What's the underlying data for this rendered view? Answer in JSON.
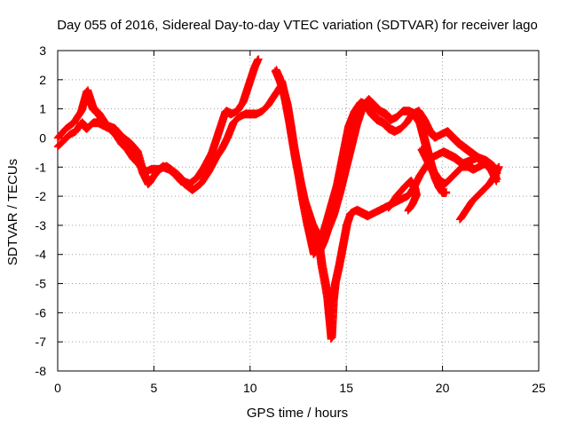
{
  "chart_data": {
    "type": "scatter",
    "title": "Day 055 of 2016, Sidereal Day-to-day VTEC variation (SDTVAR) for receiver lago",
    "xlabel": "GPS time / hours",
    "ylabel": "SDTVAR / TECUs",
    "xlim": [
      0,
      25
    ],
    "ylim": [
      -8,
      3
    ],
    "xticks": [
      "0",
      "5",
      "10",
      "15",
      "20",
      "25"
    ],
    "yticks": [
      "3",
      "2",
      "1",
      "0",
      "-1",
      "-2",
      "-3",
      "-4",
      "-5",
      "-6",
      "-7",
      "-8"
    ],
    "grid": true,
    "marker": "+",
    "marker_color": "#ff0000",
    "series": [
      {
        "points": [
          [
            0.0,
            -0.3
          ],
          [
            0.3,
            -0.1
          ],
          [
            0.6,
            0.1
          ],
          [
            0.9,
            0.2
          ],
          [
            1.2,
            0.5
          ],
          [
            1.5,
            0.3
          ],
          [
            1.8,
            0.5
          ],
          [
            2.1,
            0.5
          ],
          [
            2.4,
            0.4
          ],
          [
            2.7,
            0.3
          ],
          [
            3.0,
            0.1
          ],
          [
            3.3,
            -0.2
          ],
          [
            3.6,
            -0.4
          ],
          [
            3.9,
            -0.7
          ],
          [
            4.2,
            -0.9
          ],
          [
            4.5,
            -1.2
          ],
          [
            4.8,
            -1.1
          ],
          [
            5.2,
            -1.1
          ],
          [
            5.6,
            -1.0
          ],
          [
            6.0,
            -1.2
          ],
          [
            6.4,
            -1.5
          ],
          [
            6.8,
            -1.6
          ],
          [
            7.2,
            -1.4
          ],
          [
            7.6,
            -1.0
          ],
          [
            8.0,
            -0.5
          ],
          [
            8.4,
            0.3
          ],
          [
            8.7,
            0.9
          ],
          [
            9.0,
            0.8
          ],
          [
            9.3,
            0.9
          ],
          [
            9.6,
            1.2
          ],
          [
            9.9,
            1.8
          ],
          [
            10.2,
            2.4
          ],
          [
            10.4,
            2.7
          ]
        ]
      },
      {
        "points": [
          [
            0.0,
            0.0
          ],
          [
            0.4,
            0.3
          ],
          [
            0.8,
            0.5
          ],
          [
            1.2,
            0.9
          ],
          [
            1.5,
            1.6
          ],
          [
            1.8,
            1.0
          ],
          [
            2.1,
            0.8
          ],
          [
            2.5,
            0.4
          ],
          [
            2.9,
            0.3
          ],
          [
            3.3,
            0.0
          ],
          [
            3.7,
            -0.2
          ],
          [
            4.1,
            -0.5
          ],
          [
            4.4,
            -1.2
          ],
          [
            4.7,
            -1.6
          ],
          [
            5.0,
            -1.3
          ],
          [
            5.4,
            -1.0
          ],
          [
            5.8,
            -1.1
          ],
          [
            6.2,
            -1.3
          ],
          [
            6.6,
            -1.6
          ],
          [
            7.0,
            -1.8
          ],
          [
            7.4,
            -1.6
          ],
          [
            7.8,
            -1.2
          ],
          [
            8.2,
            -0.7
          ],
          [
            8.5,
            -0.4
          ],
          [
            8.8,
            0.0
          ],
          [
            9.1,
            0.5
          ],
          [
            9.4,
            0.7
          ],
          [
            9.7,
            0.8
          ],
          [
            10.0,
            0.8
          ],
          [
            10.3,
            0.8
          ],
          [
            10.6,
            0.9
          ],
          [
            10.9,
            1.1
          ],
          [
            11.2,
            1.4
          ],
          [
            11.6,
            1.8
          ]
        ]
      },
      {
        "points": [
          [
            11.3,
            2.3
          ],
          [
            11.5,
            2.0
          ],
          [
            11.7,
            1.6
          ],
          [
            11.9,
            1.1
          ],
          [
            12.1,
            0.3
          ],
          [
            12.3,
            -0.6
          ],
          [
            12.5,
            -1.3
          ],
          [
            12.7,
            -2.1
          ],
          [
            12.9,
            -2.8
          ],
          [
            13.1,
            -3.4
          ],
          [
            13.3,
            -4.0
          ],
          [
            13.6,
            -3.6
          ],
          [
            13.9,
            -3.0
          ],
          [
            14.2,
            -2.3
          ],
          [
            14.5,
            -1.6
          ],
          [
            14.8,
            -0.6
          ],
          [
            15.1,
            0.4
          ],
          [
            15.4,
            0.9
          ],
          [
            15.7,
            1.2
          ],
          [
            16.0,
            1.1
          ],
          [
            16.3,
            0.8
          ],
          [
            16.6,
            0.6
          ],
          [
            16.9,
            0.5
          ],
          [
            17.2,
            0.3
          ],
          [
            17.5,
            0.2
          ],
          [
            17.8,
            0.3
          ],
          [
            18.1,
            0.5
          ],
          [
            18.4,
            0.8
          ],
          [
            18.7,
            0.9
          ],
          [
            19.0,
            0.6
          ],
          [
            19.3,
            0.2
          ],
          [
            19.6,
            0.0
          ],
          [
            19.9,
            0.1
          ],
          [
            20.2,
            0.2
          ],
          [
            20.5,
            0.0
          ],
          [
            20.8,
            -0.2
          ],
          [
            21.2,
            -0.4
          ],
          [
            21.6,
            -0.6
          ],
          [
            22.0,
            -0.8
          ],
          [
            22.4,
            -1.0
          ],
          [
            22.8,
            -1.2
          ]
        ]
      },
      {
        "points": [
          [
            11.6,
            1.9
          ],
          [
            11.8,
            1.3
          ],
          [
            12.0,
            0.6
          ],
          [
            12.2,
            -0.2
          ],
          [
            12.4,
            -0.9
          ],
          [
            12.6,
            -1.6
          ],
          [
            12.8,
            -2.2
          ],
          [
            13.0,
            -2.6
          ],
          [
            13.2,
            -3.0
          ],
          [
            13.5,
            -3.4
          ],
          [
            13.7,
            -4.4
          ],
          [
            13.9,
            -5.1
          ],
          [
            14.0,
            -5.5
          ],
          [
            14.1,
            -6.2
          ],
          [
            14.2,
            -6.9
          ],
          [
            14.3,
            -5.6
          ],
          [
            14.4,
            -5.0
          ],
          [
            14.6,
            -4.4
          ],
          [
            14.8,
            -3.7
          ],
          [
            15.0,
            -3.0
          ],
          [
            15.2,
            -2.6
          ],
          [
            15.5,
            -2.5
          ],
          [
            15.8,
            -2.6
          ],
          [
            16.1,
            -2.7
          ],
          [
            16.4,
            -2.6
          ],
          [
            16.7,
            -2.5
          ],
          [
            17.0,
            -2.4
          ],
          [
            17.3,
            -2.3
          ],
          [
            17.6,
            -2.2
          ],
          [
            17.9,
            -2.1
          ],
          [
            18.2,
            -2.0
          ],
          [
            18.5,
            -1.7
          ],
          [
            18.8,
            -1.3
          ],
          [
            19.1,
            -1.0
          ],
          [
            19.4,
            -0.7
          ],
          [
            19.7,
            -0.6
          ],
          [
            20.0,
            -0.5
          ],
          [
            20.3,
            -0.6
          ],
          [
            20.6,
            -0.7
          ],
          [
            21.0,
            -0.9
          ],
          [
            21.4,
            -0.8
          ],
          [
            21.8,
            -0.7
          ],
          [
            22.2,
            -0.8
          ],
          [
            22.6,
            -1.0
          ],
          [
            22.8,
            -1.3
          ]
        ]
      },
      {
        "points": [
          [
            13.2,
            -3.2
          ],
          [
            13.4,
            -3.5
          ],
          [
            13.6,
            -3.9
          ],
          [
            13.8,
            -3.6
          ],
          [
            14.0,
            -3.2
          ],
          [
            14.3,
            -2.7
          ],
          [
            14.6,
            -2.0
          ],
          [
            14.9,
            -1.2
          ],
          [
            15.2,
            -0.4
          ],
          [
            15.5,
            0.4
          ],
          [
            15.8,
            1.0
          ],
          [
            16.1,
            1.3
          ],
          [
            16.4,
            1.1
          ],
          [
            16.7,
            0.9
          ],
          [
            17.0,
            0.8
          ],
          [
            17.3,
            0.6
          ],
          [
            17.6,
            0.7
          ],
          [
            17.9,
            0.9
          ],
          [
            18.2,
            0.9
          ],
          [
            18.5,
            0.8
          ],
          [
            18.8,
            0.5
          ],
          [
            19.0,
            0.0
          ],
          [
            19.2,
            -0.5
          ],
          [
            19.4,
            -1.0
          ],
          [
            19.6,
            -1.4
          ],
          [
            19.8,
            -1.7
          ],
          [
            20.0,
            -1.9
          ],
          [
            20.2,
            -1.9
          ]
        ]
      },
      {
        "points": [
          [
            18.9,
            -0.4
          ],
          [
            19.2,
            -0.8
          ],
          [
            19.5,
            -1.2
          ],
          [
            19.8,
            -1.5
          ],
          [
            20.1,
            -1.6
          ],
          [
            20.4,
            -1.4
          ],
          [
            20.7,
            -1.2
          ],
          [
            21.0,
            -1.0
          ],
          [
            21.3,
            -1.0
          ],
          [
            21.6,
            -1.1
          ],
          [
            21.9,
            -1.0
          ],
          [
            22.2,
            -0.9
          ],
          [
            22.5,
            -1.1
          ],
          [
            22.8,
            -1.5
          ]
        ]
      },
      {
        "points": [
          [
            20.9,
            -2.8
          ],
          [
            21.2,
            -2.5
          ],
          [
            21.5,
            -2.2
          ],
          [
            21.8,
            -2.0
          ],
          [
            22.1,
            -1.8
          ],
          [
            22.4,
            -1.6
          ],
          [
            22.7,
            -1.3
          ],
          [
            22.9,
            -1.0
          ]
        ]
      },
      {
        "points": [
          [
            17.2,
            -2.4
          ],
          [
            17.6,
            -2.0
          ],
          [
            18.0,
            -1.7
          ],
          [
            18.3,
            -1.5
          ],
          [
            18.5,
            -1.7
          ],
          [
            18.6,
            -2.0
          ],
          [
            18.4,
            -2.3
          ],
          [
            18.2,
            -2.5
          ]
        ]
      }
    ]
  }
}
